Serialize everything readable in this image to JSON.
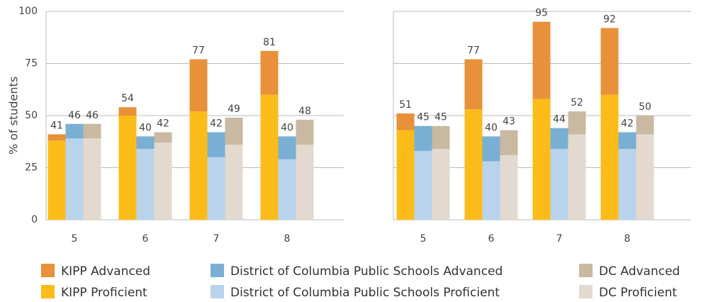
{
  "chart_data": [
    {
      "type": "bar",
      "ylabel": "% of students",
      "categories": [
        "5",
        "6",
        "7",
        "8"
      ],
      "ylim": [
        0,
        100
      ],
      "yticks": [
        0,
        25,
        50,
        75,
        100
      ],
      "grid": true,
      "stacks": [
        {
          "series": [
            {
              "name": "KIPP Proficient",
              "color": "#fbbc1a",
              "values": [
                38,
                50,
                52,
                60
              ]
            },
            {
              "name": "KIPP Advanced",
              "color": "#e8903a",
              "values": [
                3,
                4,
                25,
                21
              ]
            }
          ],
          "totals": [
            41,
            54,
            77,
            81
          ]
        },
        {
          "series": [
            {
              "name": "District of Columbia Public Schools Proficient",
              "color": "#b9d3ec",
              "values": [
                39,
                34,
                30,
                29
              ]
            },
            {
              "name": "District of Columbia Public Schools Advanced",
              "color": "#7aafd4",
              "values": [
                7,
                6,
                12,
                11
              ]
            }
          ],
          "totals": [
            46,
            40,
            42,
            40
          ]
        },
        {
          "series": [
            {
              "name": "DC Proficient",
              "color": "#e3d9cf",
              "values": [
                39,
                37,
                36,
                36
              ]
            },
            {
              "name": "DC Advanced",
              "color": "#c8b9a0",
              "values": [
                7,
                5,
                13,
                12
              ]
            }
          ],
          "totals": [
            46,
            42,
            49,
            48
          ]
        }
      ]
    },
    {
      "type": "bar",
      "categories": [
        "5",
        "6",
        "7",
        "8"
      ],
      "ylim": [
        0,
        100
      ],
      "yticks": [
        0,
        25,
        50,
        75,
        100
      ],
      "grid": true,
      "stacks": [
        {
          "series": [
            {
              "color": "#fbbc1a",
              "values": [
                43,
                53,
                58,
                60
              ]
            },
            {
              "color": "#e8903a",
              "values": [
                8,
                24,
                37,
                32
              ]
            }
          ],
          "totals": [
            51,
            77,
            95,
            92
          ]
        },
        {
          "series": [
            {
              "color": "#b9d3ec",
              "values": [
                33,
                28,
                34,
                34
              ]
            },
            {
              "color": "#7aafd4",
              "values": [
                12,
                12,
                10,
                8
              ]
            }
          ],
          "totals": [
            45,
            40,
            44,
            42
          ]
        },
        {
          "series": [
            {
              "color": "#e3d9cf",
              "values": [
                34,
                31,
                41,
                41
              ]
            },
            {
              "color": "#c8b9a0",
              "values": [
                11,
                12,
                11,
                9
              ]
            }
          ],
          "totals": [
            45,
            43,
            52,
            50
          ]
        }
      ]
    }
  ]
}
